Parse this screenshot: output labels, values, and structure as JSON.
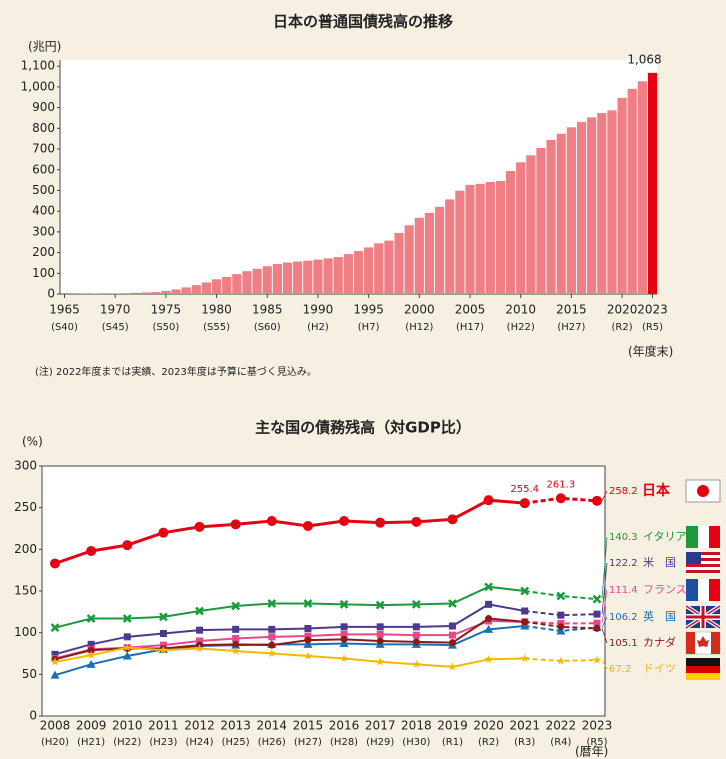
{
  "chart_data": [
    {
      "type": "bar",
      "title": "日本の普通国債残高の推移",
      "y_label": "(兆円)",
      "x_label": "(年度末)",
      "note": "(注) 2022年度までは実績、2023年度は予算に基づく見込み。",
      "categories": [
        "1965",
        null,
        null,
        null,
        null,
        "1970",
        null,
        null,
        null,
        null,
        "1975",
        null,
        null,
        null,
        null,
        "1980",
        null,
        null,
        null,
        null,
        "1985",
        null,
        null,
        null,
        null,
        "1990",
        null,
        null,
        null,
        null,
        "1995",
        null,
        null,
        null,
        null,
        "2000",
        null,
        null,
        null,
        null,
        "2005",
        null,
        null,
        null,
        null,
        "2010",
        null,
        null,
        null,
        null,
        "2015",
        null,
        null,
        null,
        null,
        "2020",
        null,
        null,
        "2023"
      ],
      "era_labels": [
        "(S40)",
        null,
        null,
        null,
        null,
        "(S45)",
        null,
        null,
        null,
        null,
        "(S50)",
        null,
        null,
        null,
        null,
        "(S55)",
        null,
        null,
        null,
        null,
        "(S60)",
        null,
        null,
        null,
        null,
        "(H2)",
        null,
        null,
        null,
        null,
        "(H7)",
        null,
        null,
        null,
        null,
        "(H12)",
        null,
        null,
        null,
        null,
        "(H17)",
        null,
        null,
        null,
        null,
        "(H22)",
        null,
        null,
        null,
        null,
        "(H27)",
        null,
        null,
        null,
        null,
        "(R2)",
        null,
        null,
        "(R5)"
      ],
      "values": [
        0.2,
        0.9,
        1.9,
        2.8,
        3.6,
        2.8,
        3.9,
        5.8,
        7.5,
        9.7,
        15,
        22,
        32,
        43,
        56,
        71,
        82,
        96,
        110,
        122,
        134,
        145,
        152,
        157,
        161,
        166,
        172,
        178,
        193,
        207,
        225,
        245,
        258,
        295,
        332,
        368,
        392,
        421,
        457,
        499,
        527,
        532,
        541,
        546,
        594,
        636,
        670,
        705,
        744,
        774,
        805,
        831,
        853,
        874,
        887,
        947,
        991,
        1027,
        1068
      ],
      "value_labels": [
        null,
        null,
        null,
        null,
        null,
        null,
        null,
        null,
        null,
        null,
        null,
        null,
        null,
        null,
        null,
        null,
        null,
        null,
        null,
        null,
        null,
        null,
        null,
        null,
        null,
        null,
        null,
        null,
        null,
        null,
        null,
        null,
        null,
        null,
        null,
        null,
        null,
        null,
        null,
        null,
        null,
        null,
        null,
        null,
        null,
        null,
        null,
        null,
        null,
        null,
        null,
        null,
        null,
        null,
        null,
        null,
        null,
        null,
        "1,068"
      ],
      "colors": [
        "#ef7f84",
        "#ef7f84",
        "#ef7f84",
        "#ef7f84",
        "#ef7f84",
        "#ef7f84",
        "#ef7f84",
        "#ef7f84",
        "#ef7f84",
        "#ef7f84",
        "#ef7f84",
        "#ef7f84",
        "#ef7f84",
        "#ef7f84",
        "#ef7f84",
        "#ef7f84",
        "#ef7f84",
        "#ef7f84",
        "#ef7f84",
        "#ef7f84",
        "#ef7f84",
        "#ef7f84",
        "#ef7f84",
        "#ef7f84",
        "#ef7f84",
        "#ef7f84",
        "#ef7f84",
        "#ef7f84",
        "#ef7f84",
        "#ef7f84",
        "#ef7f84",
        "#ef7f84",
        "#ef7f84",
        "#ef7f84",
        "#ef7f84",
        "#ef7f84",
        "#ef7f84",
        "#ef7f84",
        "#ef7f84",
        "#ef7f84",
        "#ef7f84",
        "#ef7f84",
        "#ef7f84",
        "#ef7f84",
        "#ef7f84",
        "#ef7f84",
        "#ef7f84",
        "#ef7f84",
        "#ef7f84",
        "#ef7f84",
        "#ef7f84",
        "#ef7f84",
        "#ef7f84",
        "#ef7f84",
        "#ef7f84",
        "#ef7f84",
        "#ef7f84",
        "#ef7f84",
        "#e60012"
      ],
      "ylim": [
        0,
        1130
      ],
      "yticks": [
        0,
        100,
        200,
        300,
        400,
        500,
        600,
        700,
        800,
        900,
        {
          "value": 1000,
          "label": "1,000"
        },
        {
          "value": 1100,
          "label": "1,100"
        }
      ],
      "grid": false
    },
    {
      "type": "line",
      "title": "主な国の債務残高（対GDP比）",
      "y_label": "(%)",
      "x_label": "(暦年)",
      "categories": [
        "2008",
        "2009",
        "2010",
        "2011",
        "2012",
        "2013",
        "2014",
        "2015",
        "2016",
        "2017",
        "2018",
        "2019",
        "2020",
        "2021",
        "2022",
        "2023"
      ],
      "era_labels": [
        "(H20)",
        "(H21)",
        "(H22)",
        "(H23)",
        "(H24)",
        "(H25)",
        "(H26)",
        "(H27)",
        "(H28)",
        "(H29)",
        "(H30)",
        "(R1)",
        "(R2)",
        "(R3)",
        "(R4)",
        "(R5)"
      ],
      "dashed_from": "2021",
      "series": [
        {
          "name": "日本",
          "color": "#e60012",
          "marker": "circle",
          "values": [
            183,
            198,
            205,
            220,
            227,
            230,
            234,
            228,
            234,
            232,
            233,
            236,
            259,
            255.4,
            261.3,
            258.2
          ]
        },
        {
          "name": "イタリア",
          "color": "#1a9a3c",
          "marker": "x",
          "values": [
            106,
            117,
            117,
            119,
            126,
            132,
            135,
            135,
            134,
            133,
            134,
            135,
            155,
            150,
            144,
            140.3
          ]
        },
        {
          "name": "米　国",
          "color": "#4b3a8f",
          "marker": "square",
          "values": [
            74,
            86,
            95,
            99,
            103,
            104,
            104,
            105,
            107,
            107,
            107,
            108,
            134,
            126,
            121,
            122.2
          ]
        },
        {
          "name": "フランス",
          "color": "#e8478b",
          "marker": "square",
          "values": [
            69,
            80,
            82,
            85,
            90,
            93,
            95,
            96,
            98,
            98,
            97,
            97,
            114,
            113,
            111,
            111.4
          ]
        },
        {
          "name": "英　国",
          "color": "#1a6fb5",
          "marker": "triangle",
          "values": [
            49,
            62,
            72,
            80,
            84,
            85,
            86,
            86,
            87,
            86,
            86,
            85,
            104,
            108,
            102,
            106.2
          ]
        },
        {
          "name": "カナダ",
          "color": "#8b1a1a",
          "marker": "circle",
          "values": [
            68,
            79,
            81,
            81,
            85,
            86,
            85,
            91,
            92,
            90,
            89,
            88,
            117,
            113,
            107,
            105.1
          ]
        },
        {
          "name": "ドイツ",
          "color": "#f5b800",
          "marker": "star",
          "values": [
            65,
            73,
            82,
            79,
            81,
            78,
            75,
            72,
            69,
            65,
            62,
            59,
            68,
            69,
            66,
            67.2
          ]
        }
      ],
      "ylim": [
        0,
        300
      ],
      "yticks": [
        0,
        50,
        100,
        150,
        200,
        250,
        300
      ],
      "grid": false
    }
  ]
}
